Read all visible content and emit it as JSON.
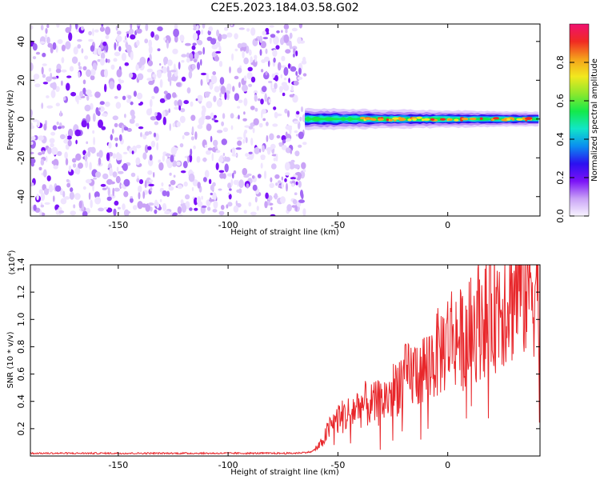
{
  "title": "C2E5.2023.184.03.58.G02",
  "colors": {
    "snr_line": "#e8262a",
    "colorbar": [
      "#f8f4ff",
      "#c9a2f6",
      "#7b12f7",
      "#2b10f0",
      "#0a8ef0",
      "#11e6c8",
      "#13e94a",
      "#8de82d",
      "#f2e81e",
      "#f5a11c",
      "#f02a22",
      "#f01070"
    ]
  },
  "chart_data": [
    {
      "type": "heatmap",
      "xlabel": "Height of straight line (km)",
      "ylabel": "Frequency (Hz)",
      "xlim": [
        -190,
        42
      ],
      "ylim": [
        -50,
        49
      ],
      "xticks": [
        "-150",
        "-100",
        "-50",
        "0"
      ],
      "xtick_values": [
        -150,
        -100,
        -50,
        0
      ],
      "yticks": [
        "-40",
        "-20",
        "0",
        "20",
        "40"
      ],
      "ytick_values": [
        -40,
        -20,
        0,
        20,
        40
      ],
      "noise_region_x": [
        -190,
        -65
      ],
      "signal_region_x": [
        -65,
        42
      ],
      "signal_center_freq": 0,
      "colorbar": {
        "label": "Normalized spectral amplitude",
        "ticks": [
          "0.0",
          "0.2",
          "0.4",
          "0.6",
          "0.8"
        ],
        "tick_values": [
          0.0,
          0.2,
          0.4,
          0.6,
          0.8
        ],
        "range": [
          0,
          1
        ]
      }
    },
    {
      "type": "line",
      "xlabel": "Height of straight line (km)",
      "ylabel": "SNR (10 * v/v)",
      "multiplier_base": "(x10",
      "multiplier_exp": "4",
      "multiplier_end": ")",
      "xlim": [
        -190,
        42
      ],
      "ylim": [
        0,
        1.4
      ],
      "xticks": [
        "-150",
        "-100",
        "-50",
        "0"
      ],
      "xtick_values": [
        -150,
        -100,
        -50,
        0
      ],
      "yticks": [
        "0.2",
        "0.4",
        "0.6",
        "0.8",
        "1.0",
        "1.2",
        "1.4"
      ],
      "ytick_values": [
        0.2,
        0.4,
        0.6,
        0.8,
        1.0,
        1.2,
        1.4
      ],
      "series": [
        {
          "x": [
            -190,
            -180,
            -170,
            -160,
            -150,
            -140,
            -130,
            -120,
            -110,
            -100,
            -90,
            -80,
            -70,
            -62,
            -58,
            -54,
            -50,
            -46,
            -42,
            -38,
            -34,
            -30,
            -26,
            -22,
            -18,
            -14,
            -10,
            -6,
            -2,
            2,
            6,
            10,
            14,
            18,
            22,
            26,
            30,
            34,
            38,
            42
          ],
          "y": [
            0.02,
            0.02,
            0.02,
            0.02,
            0.02,
            0.02,
            0.02,
            0.02,
            0.02,
            0.02,
            0.02,
            0.02,
            0.02,
            0.03,
            0.08,
            0.2,
            0.28,
            0.3,
            0.35,
            0.38,
            0.37,
            0.4,
            0.45,
            0.55,
            0.58,
            0.62,
            0.65,
            0.72,
            0.8,
            0.9,
            0.85,
            0.9,
            1.0,
            1.05,
            1.1,
            1.15,
            1.2,
            1.25,
            1.27,
            1.28
          ]
        }
      ]
    }
  ]
}
